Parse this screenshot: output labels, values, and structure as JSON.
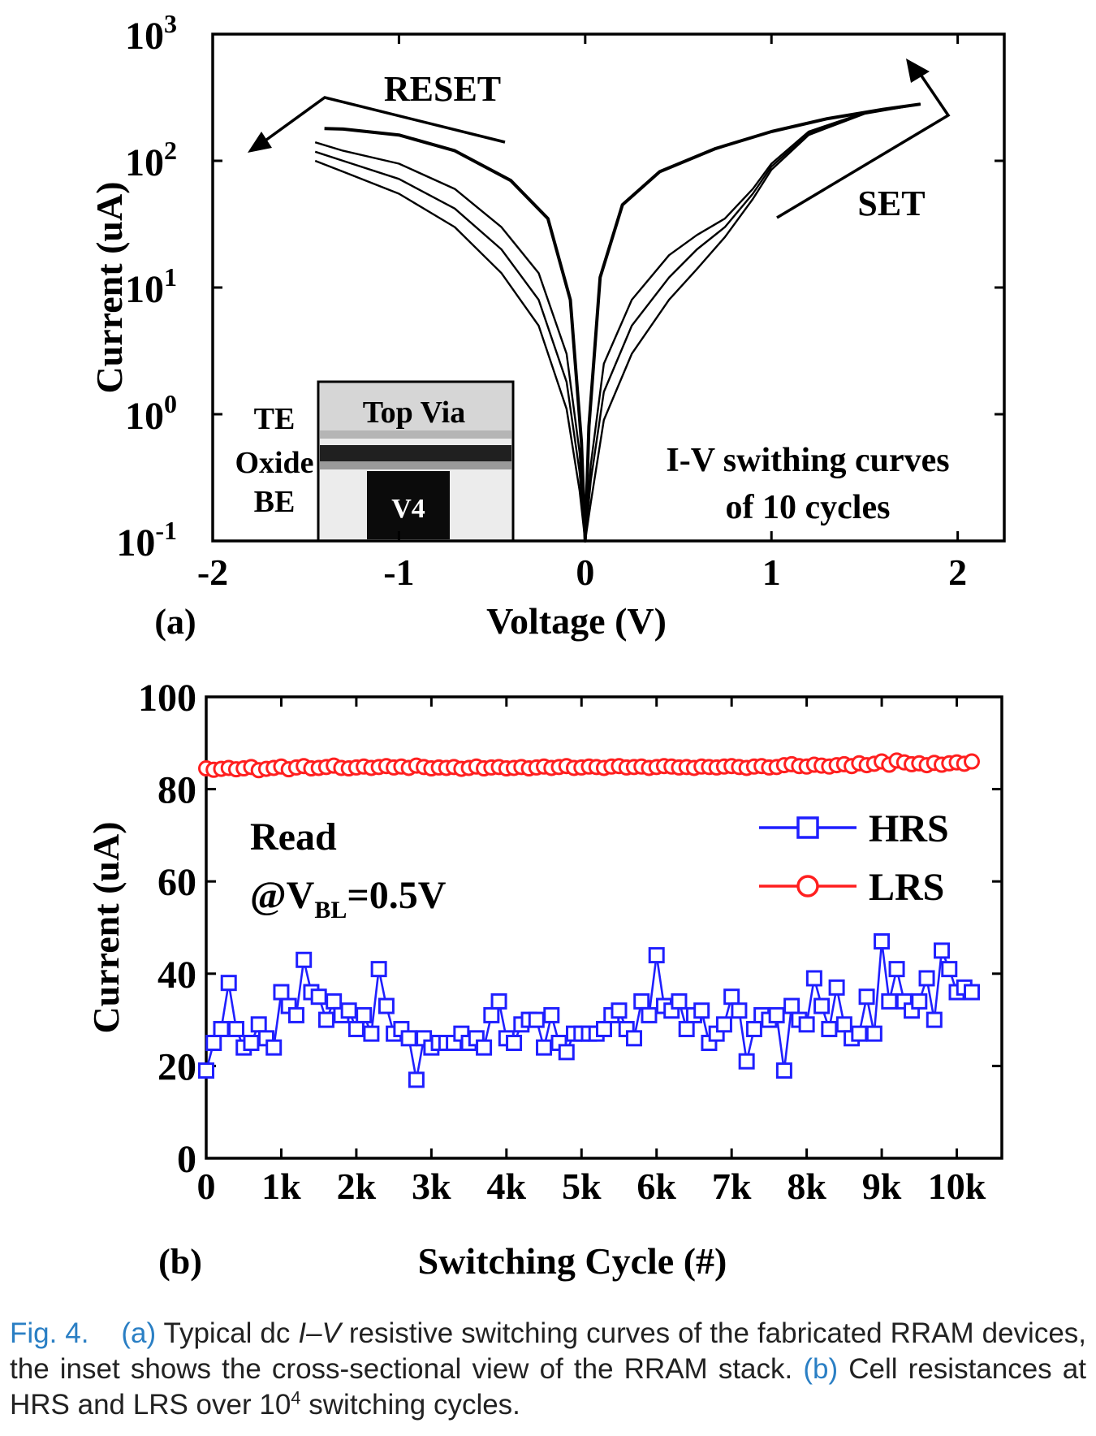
{
  "chart_data": [
    {
      "type": "line",
      "panel_label": "(a)",
      "xlabel": "Voltage (V)",
      "ylabel": "Current (uA)",
      "xlim": [
        -2,
        2.25
      ],
      "ylim": [
        0.1,
        1000
      ],
      "yscale": "log",
      "x_ticks": [
        "-2",
        "-1",
        "0",
        "1",
        "2"
      ],
      "y_ticks": [
        {
          "base": "10",
          "exp": "3"
        },
        {
          "base": "10",
          "exp": "2"
        },
        {
          "base": "10",
          "exp": "1"
        },
        {
          "base": "10",
          "exp": "0"
        },
        {
          "base": "10",
          "exp": "-1"
        }
      ],
      "annotations": {
        "reset": "RESET",
        "set": "SET",
        "info_line1": "I-V swithing curves",
        "info_line2": "of 10  cycles"
      },
      "inset": {
        "top_via": "Top Via",
        "v4": "V4",
        "te": "TE",
        "oxide": "Oxide",
        "be": "BE"
      },
      "series": [
        {
          "values": [
            [
              -1.4,
              180
            ],
            [
              -1.3,
              178
            ],
            [
              -1.0,
              160
            ],
            [
              -0.7,
              120
            ],
            [
              -0.4,
              70
            ],
            [
              -0.2,
              35
            ],
            [
              -0.08,
              8
            ],
            [
              -0.02,
              0.6
            ],
            [
              0,
              0.1
            ],
            [
              0.02,
              0.8
            ],
            [
              0.08,
              12
            ],
            [
              0.2,
              45
            ],
            [
              0.4,
              82
            ],
            [
              0.7,
              125
            ],
            [
              1.0,
              170
            ],
            [
              1.3,
              215
            ],
            [
              1.6,
              255
            ],
            [
              1.8,
              280
            ]
          ]
        },
        {
          "values": [
            [
              -1.45,
              140
            ],
            [
              -1.3,
              120
            ],
            [
              -1.0,
              95
            ],
            [
              -0.7,
              60
            ],
            [
              -0.45,
              30
            ],
            [
              -0.25,
              13
            ],
            [
              -0.1,
              3
            ],
            [
              -0.03,
              0.5
            ],
            [
              0,
              0.1
            ],
            [
              0.03,
              0.4
            ],
            [
              0.1,
              2.5
            ],
            [
              0.25,
              8
            ],
            [
              0.45,
              18
            ],
            [
              0.6,
              26
            ],
            [
              0.75,
              35
            ],
            [
              0.9,
              60
            ],
            [
              1.0,
              95
            ],
            [
              1.2,
              170
            ],
            [
              1.5,
              240
            ],
            [
              1.8,
              280
            ]
          ]
        },
        {
          "values": [
            [
              -1.45,
              118
            ],
            [
              -1.3,
              100
            ],
            [
              -1.0,
              72
            ],
            [
              -0.7,
              42
            ],
            [
              -0.45,
              20
            ],
            [
              -0.25,
              8
            ],
            [
              -0.1,
              1.8
            ],
            [
              -0.03,
              0.35
            ],
            [
              0,
              0.1
            ],
            [
              0.03,
              0.3
            ],
            [
              0.1,
              1.5
            ],
            [
              0.25,
              5
            ],
            [
              0.45,
              12
            ],
            [
              0.6,
              20
            ],
            [
              0.75,
              30
            ],
            [
              0.9,
              55
            ],
            [
              1.0,
              90
            ],
            [
              1.2,
              165
            ],
            [
              1.5,
              240
            ],
            [
              1.8,
              280
            ]
          ]
        },
        {
          "values": [
            [
              -1.45,
              100
            ],
            [
              -1.3,
              82
            ],
            [
              -1.0,
              55
            ],
            [
              -0.7,
              30
            ],
            [
              -0.45,
              13
            ],
            [
              -0.25,
              5
            ],
            [
              -0.1,
              1.1
            ],
            [
              -0.03,
              0.25
            ],
            [
              0,
              0.1
            ],
            [
              0.03,
              0.2
            ],
            [
              0.1,
              0.9
            ],
            [
              0.25,
              3
            ],
            [
              0.45,
              8
            ],
            [
              0.6,
              14
            ],
            [
              0.75,
              25
            ],
            [
              0.9,
              50
            ],
            [
              1.0,
              85
            ],
            [
              1.2,
              160
            ],
            [
              1.5,
              235
            ],
            [
              1.8,
              280
            ]
          ]
        }
      ]
    },
    {
      "type": "line",
      "panel_label": "(b)",
      "xlabel": "Switching Cycle (#)",
      "ylabel": "Current (uA)",
      "xlim": [
        0,
        10600
      ],
      "ylim": [
        0,
        100
      ],
      "x_ticks": [
        "0",
        "1k",
        "2k",
        "3k",
        "4k",
        "5k",
        "6k",
        "7k",
        "8k",
        "9k",
        "10k"
      ],
      "y_ticks": [
        "0",
        "20",
        "40",
        "60",
        "80",
        "100"
      ],
      "annotation_line1": "Read",
      "annotation_line2_prefix": "@V",
      "annotation_line2_sub": "BL",
      "annotation_line2_suffix": "=0.5V",
      "legend_position": "top-right",
      "series": [
        {
          "name": "HRS",
          "color": "#1f1fff",
          "marker": "square",
          "step": 100,
          "values": [
            19,
            25,
            28,
            38,
            28,
            24,
            25,
            29,
            26,
            24,
            36,
            33,
            31,
            43,
            36,
            35,
            30,
            34,
            31,
            32,
            28,
            31,
            27,
            41,
            33,
            27,
            28,
            26,
            17,
            26,
            24,
            25,
            25,
            25,
            27,
            25,
            26,
            24,
            31,
            34,
            26,
            25,
            29,
            30,
            30,
            24,
            31,
            25,
            23,
            27,
            27,
            27,
            27,
            28,
            31,
            32,
            28,
            26,
            34,
            31,
            44,
            33,
            32,
            34,
            28,
            31,
            32,
            25,
            27,
            29,
            35,
            32,
            21,
            28,
            31,
            30,
            31,
            19,
            33,
            30,
            29,
            39,
            33,
            28,
            37,
            29,
            26,
            27,
            35,
            27,
            47,
            34,
            41,
            34,
            32,
            34,
            39,
            30,
            45,
            41,
            36,
            37,
            36
          ]
        },
        {
          "name": "LRS",
          "color": "#ff1f1f",
          "marker": "circle",
          "step": 100,
          "values": [
            84.5,
            84.2,
            84.4,
            84.6,
            84.3,
            84.5,
            84.8,
            84.1,
            84.4,
            84.6,
            84.9,
            84.3,
            84.7,
            85.0,
            84.5,
            84.6,
            84.8,
            85.1,
            84.6,
            84.5,
            84.7,
            84.9,
            84.6,
            84.8,
            85.0,
            84.7,
            84.9,
            84.6,
            85.1,
            84.8,
            84.5,
            84.7,
            84.6,
            84.8,
            84.4,
            84.6,
            84.9,
            84.5,
            84.7,
            84.8,
            84.5,
            84.6,
            84.8,
            84.5,
            84.7,
            84.9,
            84.6,
            84.8,
            85.0,
            84.6,
            84.7,
            84.9,
            84.8,
            84.6,
            84.9,
            85.0,
            84.7,
            84.8,
            84.9,
            84.6,
            84.8,
            85.0,
            84.9,
            84.7,
            84.8,
            84.6,
            84.9,
            84.8,
            84.7,
            84.9,
            85.0,
            84.8,
            84.6,
            84.9,
            85.0,
            84.7,
            84.8,
            85.2,
            85.4,
            85.0,
            84.9,
            85.3,
            85.1,
            84.9,
            85.2,
            85.4,
            85.0,
            85.6,
            85.2,
            85.5,
            86.0,
            85.3,
            86.2,
            85.8,
            85.4,
            85.6,
            85.2,
            85.7,
            85.3,
            85.6,
            85.8,
            85.5,
            86.0
          ]
        }
      ]
    }
  ],
  "caption": {
    "fig": "Fig. 4.",
    "a_label": "(a)",
    "part1": " Typical dc ",
    "iv": "I–V",
    "part2": " resistive switching curves of the fabricated RRAM devices, the inset shows the cross-sectional view of the RRAM stack. ",
    "b_label": "(b)",
    "part3": " Cell resistances at HRS and LRS over 10",
    "sup": "4",
    "part4": " switching cycles."
  }
}
